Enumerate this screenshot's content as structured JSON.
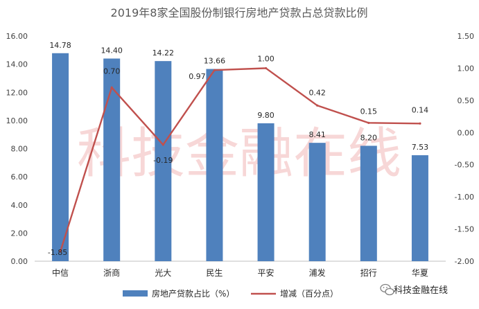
{
  "chart_data": {
    "type": "bar",
    "title": "2019年8家全国股份制银行房地产贷款占总贷款比例",
    "categories": [
      "中信",
      "浙商",
      "光大",
      "民生",
      "平安",
      "浦发",
      "招行",
      "华夏"
    ],
    "series": [
      {
        "name": "房地产贷款占比（%）",
        "type": "bar",
        "axis": "left",
        "color": "#4F81BD",
        "values": [
          14.78,
          14.4,
          14.22,
          13.66,
          9.8,
          8.41,
          8.2,
          7.53
        ],
        "value_labels": [
          "14.78",
          "14.40",
          "14.22",
          "13.66",
          "9.80",
          "8.41",
          "8.20",
          "7.53"
        ]
      },
      {
        "name": "增减（百分点）",
        "type": "line",
        "axis": "right",
        "color": "#C0504D",
        "values": [
          -1.85,
          0.7,
          -0.19,
          0.97,
          1.0,
          0.42,
          0.15,
          0.14
        ],
        "value_labels": [
          "-1.85",
          "0.70",
          "-0.19",
          "0.97",
          "1.00",
          "0.42",
          "0.15",
          "0.14"
        ]
      }
    ],
    "ylim": [
      0,
      16
    ],
    "yticks": [
      "0.00",
      "2.00",
      "4.00",
      "6.00",
      "8.00",
      "10.00",
      "12.00",
      "14.00",
      "16.00"
    ],
    "y2lim": [
      -2,
      1.5
    ],
    "y2ticks": [
      "-2.00",
      "-1.50",
      "-1.00",
      "-0.50",
      "0.00",
      "0.50",
      "1.00",
      "1.50"
    ],
    "grid": false,
    "legend_position": "bottom"
  },
  "watermark": "科技金融在线",
  "logo_text": "科技金融在线",
  "logo_icon": "wechat-icon"
}
